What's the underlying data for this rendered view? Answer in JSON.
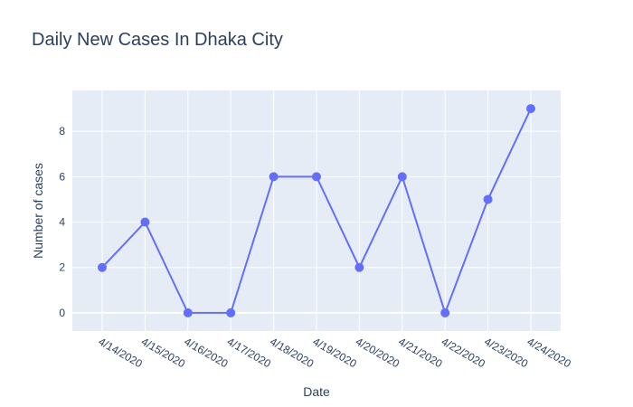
{
  "chart_data": {
    "type": "line",
    "title": "Daily New Cases In Dhaka City",
    "xlabel": "Date",
    "ylabel": "Number of cases",
    "x": [
      "4/14/2020",
      "4/15/2020",
      "4/16/2020",
      "4/17/2020",
      "4/18/2020",
      "4/19/2020",
      "4/20/2020",
      "4/21/2020",
      "4/22/2020",
      "4/23/2020",
      "4/24/2020"
    ],
    "y": [
      2,
      4,
      0,
      0,
      6,
      6,
      2,
      6,
      0,
      5,
      9
    ],
    "yticks": [
      "0",
      "2",
      "4",
      "6",
      "8"
    ],
    "ylim": [
      -0.8,
      9.8
    ],
    "grid": true,
    "colors": {
      "line": "#636efa",
      "plot_bg": "#e5ecf6",
      "grid": "#ffffff",
      "text": "#2a3f5f"
    }
  }
}
